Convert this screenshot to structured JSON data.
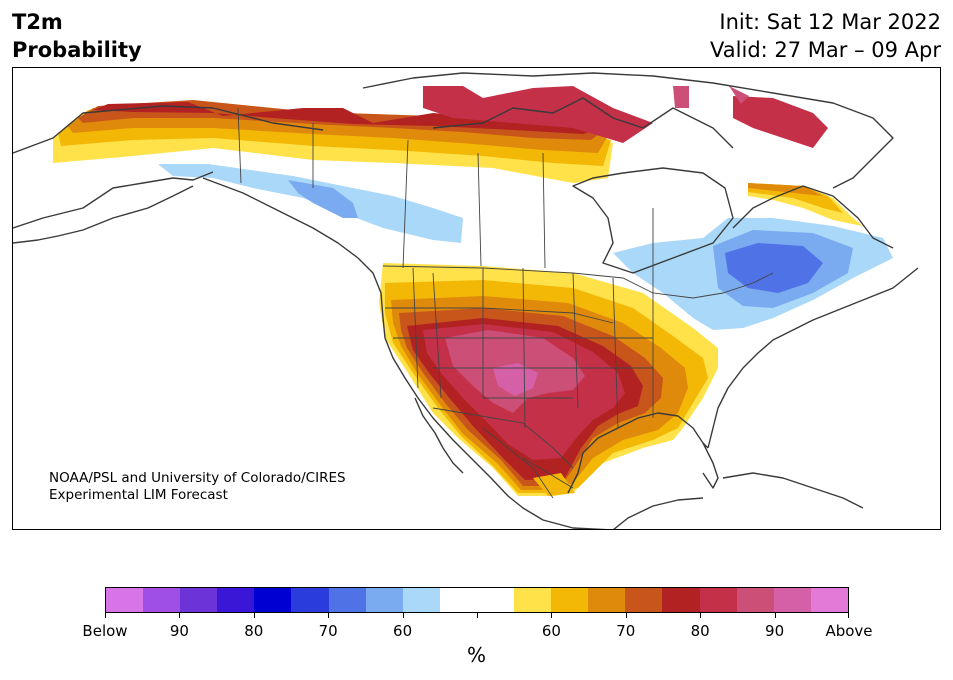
{
  "header": {
    "title_line1": "T2m",
    "title_line2": "Probability",
    "init": "Init: Sat 12 Mar 2022",
    "valid": "Valid: 27 Mar – 09 Apr"
  },
  "credit": {
    "line1": "NOAA/PSL and University of Colorado/CIRES",
    "line2": "Experimental LIM Forecast"
  },
  "colorbar": {
    "colors": [
      "#d774e8",
      "#9f4fe6",
      "#6c34d8",
      "#3a16d6",
      "#0000d2",
      "#2a3ddc",
      "#4f72e6",
      "#7aaaf0",
      "#aad8f8",
      "#ffffff",
      "#ffffff",
      "#ffe24a",
      "#f3b806",
      "#e08a0c",
      "#c8561a",
      "#b22222",
      "#c43048",
      "#cc4f78",
      "#d660a8",
      "#e47ad8"
    ],
    "tick_labels": [
      "Below",
      "90",
      "80",
      "70",
      "60",
      "",
      "60",
      "70",
      "80",
      "90",
      "Above"
    ],
    "unit": "%"
  },
  "map": {
    "region": "North America",
    "projection": "polar stereographic",
    "warm_core": "southern Plains / Texas (above normal, ~90%)",
    "cold_core": "Quebec / Great Lakes (below normal, ~70%)"
  }
}
